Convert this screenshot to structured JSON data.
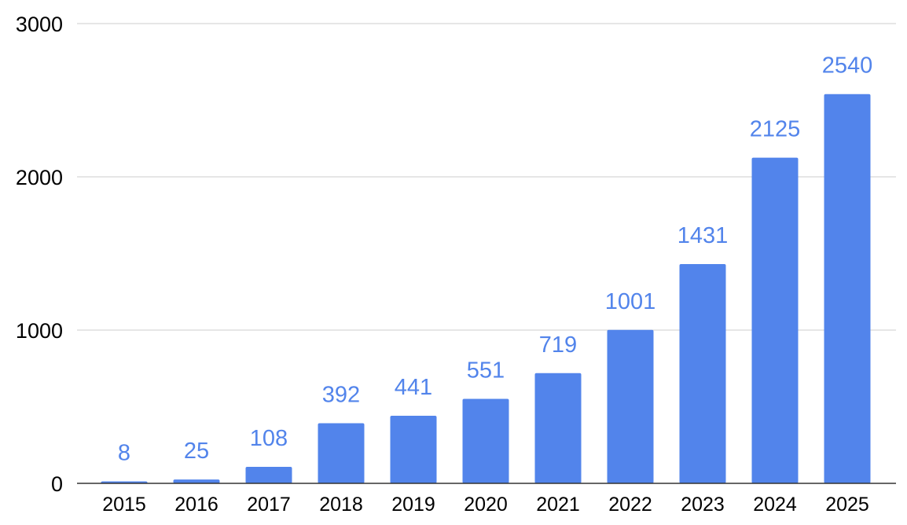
{
  "colors": {
    "bar": "#5284EB",
    "data_label": "#5284EB",
    "grid": "#cccccc",
    "axis": "#333333",
    "tick_text": "#000000"
  },
  "chart_data": {
    "type": "bar",
    "title": "",
    "xlabel": "",
    "ylabel": "",
    "categories": [
      "2015",
      "2016",
      "2017",
      "2018",
      "2019",
      "2020",
      "2021",
      "2022",
      "2023",
      "2024",
      "2025"
    ],
    "values": [
      8,
      25,
      108,
      392,
      441,
      551,
      719,
      1001,
      1431,
      2125,
      2540
    ],
    "data_labels": [
      "8",
      "25",
      "108",
      "392",
      "441",
      "551",
      "719",
      "1001",
      "1431",
      "2125",
      "2540"
    ],
    "ylim": [
      0,
      3000
    ],
    "yticks": [
      0,
      1000,
      2000,
      3000
    ],
    "ytick_labels": [
      "0",
      "1000",
      "2000",
      "3000"
    ],
    "grid": true,
    "legend": "none"
  }
}
